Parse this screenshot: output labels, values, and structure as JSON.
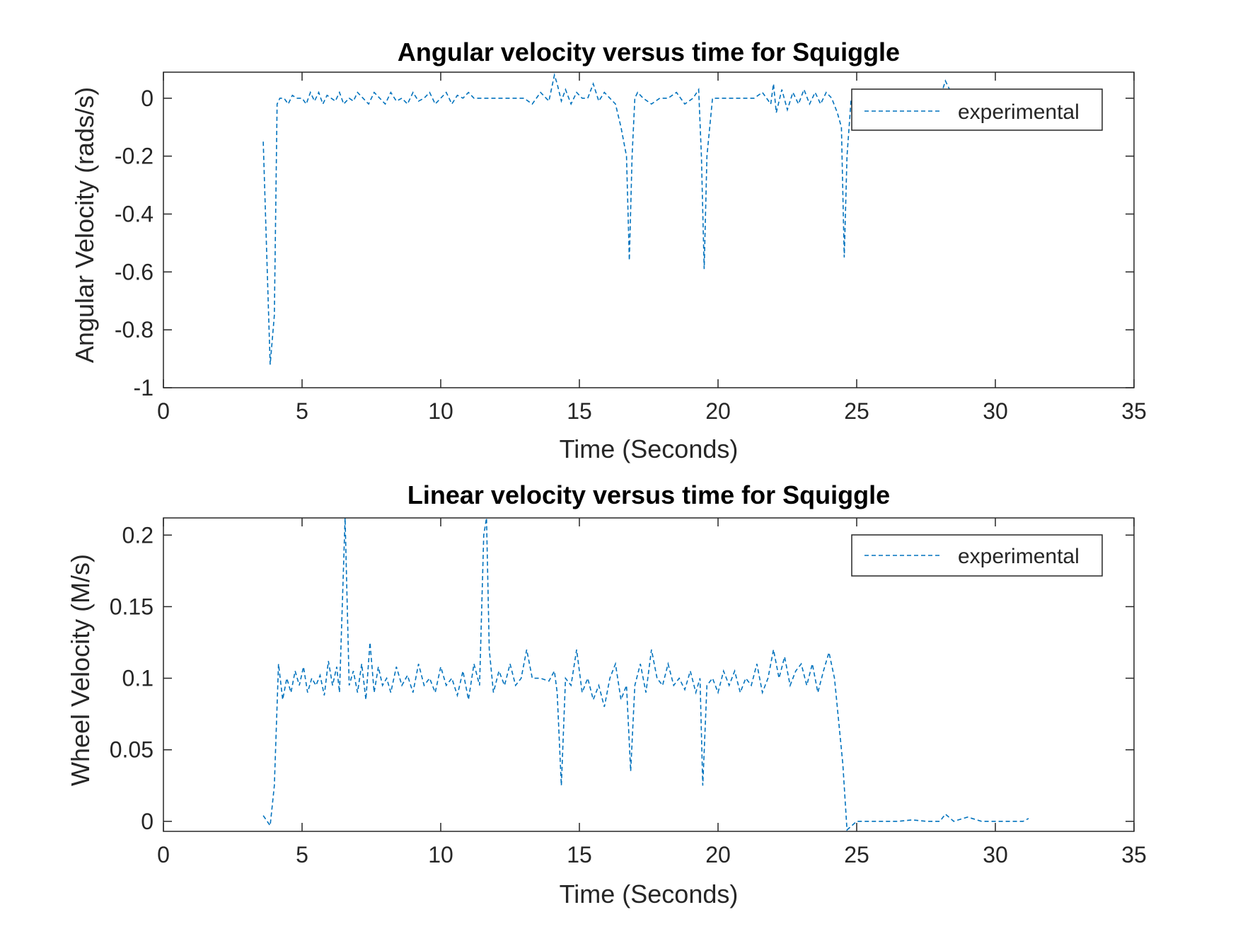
{
  "chart_data": [
    {
      "type": "line",
      "title": "Angular velocity versus time for Squiggle",
      "xlabel": "Time (Seconds)",
      "ylabel": "Angular Velocity (rads/s)",
      "xlim": [
        0,
        35
      ],
      "ylim": [
        -1,
        0.09
      ],
      "xticks": [
        "0",
        "5",
        "10",
        "15",
        "20",
        "25",
        "30",
        "35"
      ],
      "yticks": [
        "0",
        "-0.2",
        "-0.4",
        "-0.6",
        "-0.8",
        "-1"
      ],
      "ytick_values": [
        0,
        -0.2,
        -0.4,
        -0.6,
        -0.8,
        -1
      ],
      "grid": false,
      "legend": {
        "position": "top-right",
        "entries": [
          "experimental"
        ]
      },
      "series": [
        {
          "name": "experimental",
          "color": "#0072BD",
          "style": "dashed",
          "x": [
            3.6,
            3.85,
            4.0,
            4.1,
            4.2,
            4.35,
            4.5,
            4.65,
            4.8,
            5.0,
            5.15,
            5.3,
            5.45,
            5.6,
            5.75,
            5.9,
            6.05,
            6.2,
            6.35,
            6.5,
            6.7,
            6.85,
            7.0,
            7.2,
            7.4,
            7.6,
            7.8,
            8.0,
            8.2,
            8.4,
            8.6,
            8.8,
            9.0,
            9.2,
            9.4,
            9.6,
            9.8,
            10.0,
            10.2,
            10.4,
            10.6,
            10.8,
            11.0,
            11.2,
            11.5,
            12.0,
            12.5,
            13.0,
            13.3,
            13.6,
            13.9,
            14.1,
            14.2,
            14.35,
            14.5,
            14.7,
            14.9,
            15.1,
            15.3,
            15.5,
            15.7,
            15.9,
            16.1,
            16.3,
            16.5,
            16.7,
            16.8,
            16.9,
            17.0,
            17.1,
            17.3,
            17.6,
            17.9,
            18.2,
            18.5,
            18.8,
            19.1,
            19.3,
            19.4,
            19.5,
            19.6,
            19.8,
            20.2,
            20.6,
            21.0,
            21.3,
            21.6,
            21.9,
            22.0,
            22.1,
            22.3,
            22.5,
            22.7,
            22.9,
            23.1,
            23.3,
            23.5,
            23.7,
            23.9,
            24.1,
            24.3,
            24.45,
            24.55,
            24.65,
            24.8,
            25.0,
            25.5,
            26.0,
            27.0,
            27.5,
            28.0,
            28.2,
            28.5,
            29.0,
            29.5,
            30.0,
            30.5,
            31.0
          ],
          "y": [
            -0.15,
            -0.92,
            -0.75,
            -0.02,
            0.0,
            0.0,
            -0.02,
            0.01,
            0.0,
            0.0,
            -0.02,
            0.02,
            -0.01,
            0.02,
            -0.02,
            0.01,
            0.0,
            -0.01,
            0.02,
            -0.02,
            0.0,
            -0.01,
            0.02,
            0.0,
            -0.02,
            0.02,
            0.0,
            -0.02,
            0.02,
            -0.01,
            0.0,
            -0.02,
            0.02,
            -0.01,
            0.0,
            0.02,
            -0.02,
            0.0,
            0.02,
            -0.02,
            0.01,
            0.0,
            0.02,
            0.0,
            0.0,
            0.0,
            0.0,
            0.0,
            -0.02,
            0.02,
            -0.01,
            0.08,
            0.05,
            -0.01,
            0.03,
            -0.02,
            0.02,
            0.0,
            0.0,
            0.05,
            -0.01,
            0.02,
            0.0,
            -0.02,
            -0.1,
            -0.2,
            -0.56,
            -0.2,
            0.0,
            0.02,
            0.0,
            -0.02,
            0.0,
            0.0,
            0.02,
            -0.02,
            0.0,
            0.03,
            -0.2,
            -0.59,
            -0.2,
            0.0,
            0.0,
            0.0,
            0.0,
            0.0,
            0.02,
            -0.02,
            0.05,
            -0.05,
            0.03,
            -0.04,
            0.02,
            -0.02,
            0.03,
            -0.02,
            0.02,
            -0.02,
            0.02,
            0.0,
            -0.05,
            -0.1,
            -0.55,
            -0.2,
            0.0,
            0.0,
            0.0,
            0.0,
            0.0,
            0.0,
            0.0,
            0.06,
            0.0,
            0.0,
            0.03,
            0.0,
            0.0,
            0.03
          ]
        }
      ]
    },
    {
      "type": "line",
      "title": "Linear velocity versus time for Squiggle",
      "xlabel": "Time (Seconds)",
      "ylabel": "Wheel Velocity (M/s)",
      "xlim": [
        0,
        35
      ],
      "ylim": [
        -0.007,
        0.212
      ],
      "xticks": [
        "0",
        "5",
        "10",
        "15",
        "20",
        "25",
        "30",
        "35"
      ],
      "yticks": [
        "0.2",
        "0.15",
        "0.1",
        "0.05",
        "0"
      ],
      "ytick_values": [
        0.2,
        0.15,
        0.1,
        0.05,
        0
      ],
      "grid": false,
      "legend": {
        "position": "top-right",
        "entries": [
          "experimental"
        ]
      },
      "series": [
        {
          "name": "experimental",
          "color": "#0072BD",
          "style": "dashed",
          "x": [
            3.6,
            3.85,
            4.0,
            4.15,
            4.3,
            4.45,
            4.6,
            4.75,
            4.9,
            5.05,
            5.2,
            5.35,
            5.5,
            5.65,
            5.8,
            5.95,
            6.1,
            6.25,
            6.35,
            6.45,
            6.55,
            6.7,
            6.85,
            7.0,
            7.15,
            7.3,
            7.45,
            7.6,
            7.75,
            7.9,
            8.05,
            8.2,
            8.4,
            8.6,
            8.8,
            9.0,
            9.2,
            9.4,
            9.6,
            9.8,
            10.0,
            10.2,
            10.4,
            10.6,
            10.8,
            11.0,
            11.2,
            11.4,
            11.55,
            11.65,
            11.75,
            11.9,
            12.1,
            12.3,
            12.5,
            12.7,
            12.9,
            13.1,
            13.3,
            13.6,
            13.9,
            14.1,
            14.2,
            14.35,
            14.5,
            14.7,
            14.9,
            15.1,
            15.3,
            15.5,
            15.7,
            15.9,
            16.1,
            16.3,
            16.5,
            16.7,
            16.85,
            17.0,
            17.2,
            17.4,
            17.6,
            17.8,
            18.0,
            18.2,
            18.4,
            18.6,
            18.8,
            19.0,
            19.2,
            19.35,
            19.45,
            19.6,
            19.8,
            20.0,
            20.2,
            20.4,
            20.6,
            20.8,
            21.0,
            21.2,
            21.4,
            21.6,
            21.8,
            22.0,
            22.2,
            22.4,
            22.6,
            22.8,
            23.0,
            23.2,
            23.4,
            23.6,
            23.8,
            24.0,
            24.2,
            24.35,
            24.5,
            24.65,
            25.0,
            25.5,
            26.0,
            26.5,
            27.0,
            27.5,
            28.0,
            28.2,
            28.5,
            29.0,
            29.5,
            30.0,
            30.5,
            31.0,
            31.2
          ],
          "y": [
            0.004,
            -0.003,
            0.025,
            0.11,
            0.085,
            0.1,
            0.09,
            0.105,
            0.095,
            0.108,
            0.09,
            0.1,
            0.095,
            0.102,
            0.088,
            0.112,
            0.095,
            0.108,
            0.09,
            0.15,
            0.212,
            0.095,
            0.105,
            0.09,
            0.11,
            0.085,
            0.125,
            0.09,
            0.108,
            0.095,
            0.1,
            0.09,
            0.108,
            0.095,
            0.102,
            0.09,
            0.11,
            0.095,
            0.1,
            0.09,
            0.108,
            0.095,
            0.1,
            0.088,
            0.105,
            0.085,
            0.11,
            0.095,
            0.2,
            0.212,
            0.12,
            0.09,
            0.105,
            0.095,
            0.11,
            0.095,
            0.1,
            0.12,
            0.1,
            0.1,
            0.098,
            0.105,
            0.09,
            0.025,
            0.1,
            0.095,
            0.12,
            0.09,
            0.1,
            0.085,
            0.095,
            0.08,
            0.1,
            0.11,
            0.085,
            0.095,
            0.035,
            0.095,
            0.11,
            0.09,
            0.12,
            0.1,
            0.095,
            0.11,
            0.095,
            0.1,
            0.092,
            0.105,
            0.09,
            0.1,
            0.025,
            0.095,
            0.1,
            0.09,
            0.105,
            0.095,
            0.105,
            0.09,
            0.1,
            0.095,
            0.11,
            0.09,
            0.1,
            0.12,
            0.1,
            0.115,
            0.095,
            0.105,
            0.11,
            0.095,
            0.11,
            0.09,
            0.105,
            0.118,
            0.1,
            0.07,
            0.04,
            -0.006,
            0.0,
            0.0,
            0.0,
            0.0,
            0.001,
            0.0,
            0.0,
            0.005,
            0.0,
            0.003,
            0.0,
            0.0,
            0.0,
            0.0,
            0.002
          ]
        }
      ]
    }
  ]
}
